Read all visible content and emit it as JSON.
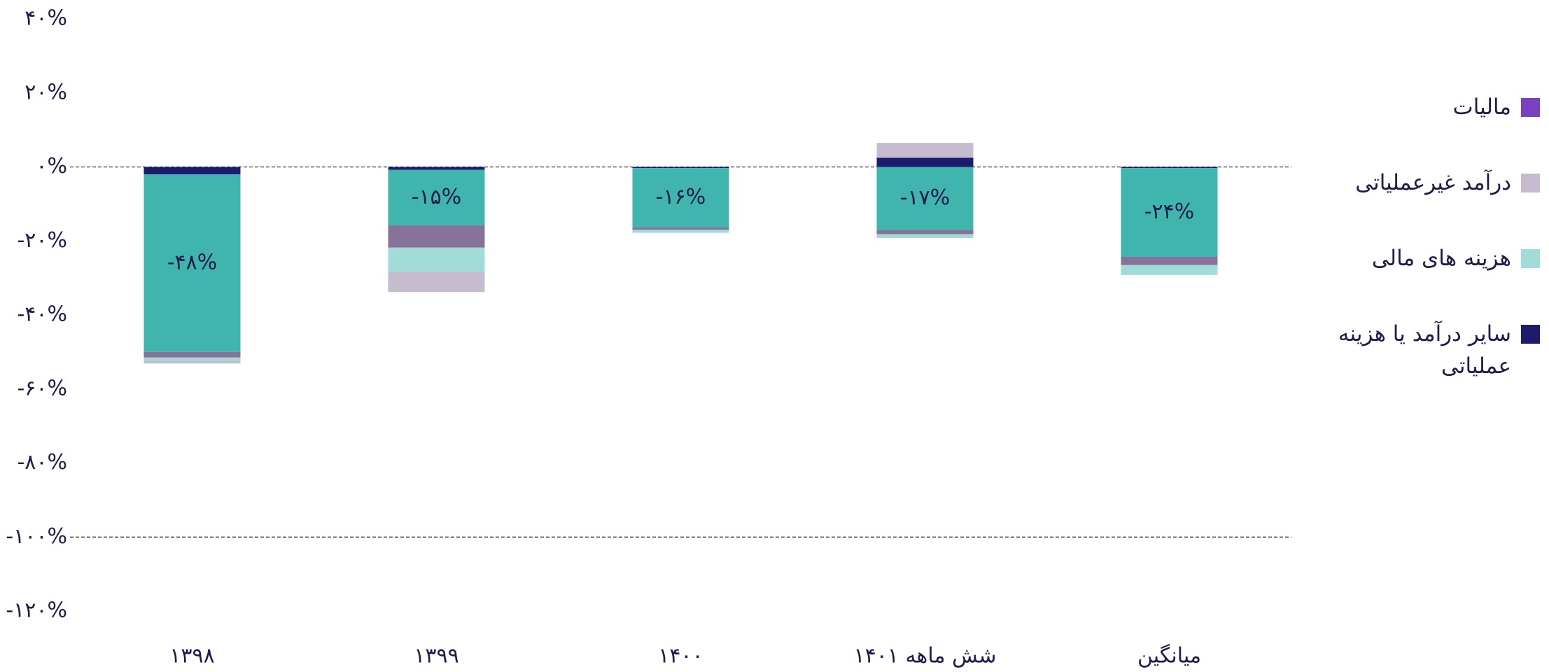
{
  "chart_data": {
    "type": "stacked_bar",
    "categories": [
      "۱۳۹۸",
      "۱۳۹۹",
      "۱۴۰۰",
      "شش ماهه ۱۴۰۱",
      "میانگین"
    ],
    "series": [
      {
        "name": "مالیات",
        "color": "#7b3fbf",
        "values": [
          0,
          0,
          0,
          0,
          0
        ]
      },
      {
        "name": "درآمد غیرعملیاتی",
        "color": "#c5bccf",
        "values": [
          -0.8,
          -5.5,
          0,
          4,
          0
        ]
      },
      {
        "name": "هزینه های مالی",
        "color": "#a2dcd9",
        "values": [
          -0.8,
          -6.5,
          -0.8,
          -1,
          -2.7
        ]
      },
      {
        "name": "سایر درآمد یا هزینه عملیاتی",
        "color": "#1c1c6e",
        "values": [
          -2,
          -0.8,
          -0.3,
          2.5,
          -0.3
        ]
      },
      {
        "color": "#40b5ae",
        "values": [
          -48,
          -15,
          -16,
          -17,
          -24
        ],
        "value_labels": [
          "-۴۸%",
          "-۱۵%",
          "-۱۶%",
          "-۱۷%",
          "-۲۴%"
        ]
      },
      {
        "color": "#87729a",
        "values": [
          -1.5,
          -6,
          -0.7,
          -1.2,
          -2.2
        ]
      }
    ],
    "ylim": [
      -120,
      40
    ],
    "yticks": [
      {
        "value": 40,
        "label": "۴۰%"
      },
      {
        "value": 20,
        "label": "۲۰%"
      },
      {
        "value": 0,
        "label": "۰%"
      },
      {
        "value": -20,
        "label": "-۲۰%"
      },
      {
        "value": -40,
        "label": "-۴۰%"
      },
      {
        "value": -60,
        "label": "-۶۰%"
      },
      {
        "value": -80,
        "label": "-۸۰%"
      },
      {
        "value": -100,
        "label": "-۱۰۰%"
      },
      {
        "value": -120,
        "label": "-۱۲۰%"
      }
    ],
    "dashed_lines": [
      0,
      -100
    ],
    "legend": "right"
  }
}
